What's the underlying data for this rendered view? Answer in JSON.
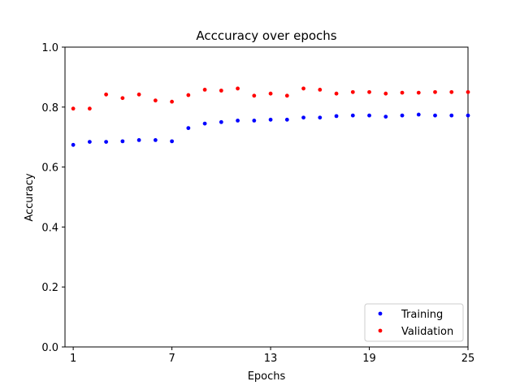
{
  "chart_data": {
    "type": "scatter",
    "title": "Acccuracy over epochs",
    "xlabel": "Epochs",
    "ylabel": "Accuracy",
    "xlim": [
      0.5,
      25
    ],
    "ylim": [
      0.0,
      1.0
    ],
    "xticks": [
      1,
      7,
      13,
      19,
      25
    ],
    "yticks": [
      0.0,
      0.2,
      0.4,
      0.6,
      0.8,
      1.0
    ],
    "ytick_labels": [
      "0.0",
      "0.2",
      "0.4",
      "0.6",
      "0.8",
      "1.0"
    ],
    "legend_position": "lower-right",
    "x": [
      1,
      2,
      3,
      4,
      5,
      6,
      7,
      8,
      9,
      10,
      11,
      12,
      13,
      14,
      15,
      16,
      17,
      18,
      19,
      20,
      21,
      22,
      23,
      24,
      25
    ],
    "series": [
      {
        "name": "Training",
        "color": "#0000ff",
        "values": [
          0.674,
          0.684,
          0.684,
          0.686,
          0.69,
          0.69,
          0.686,
          0.73,
          0.745,
          0.75,
          0.755,
          0.755,
          0.758,
          0.758,
          0.765,
          0.765,
          0.77,
          0.772,
          0.772,
          0.768,
          0.772,
          0.775,
          0.772,
          0.772,
          0.772
        ]
      },
      {
        "name": "Validation",
        "color": "#ff0000",
        "values": [
          0.795,
          0.795,
          0.842,
          0.83,
          0.842,
          0.822,
          0.818,
          0.84,
          0.858,
          0.855,
          0.862,
          0.838,
          0.845,
          0.838,
          0.862,
          0.858,
          0.845,
          0.85,
          0.85,
          0.845,
          0.848,
          0.848,
          0.85,
          0.85,
          0.85
        ]
      }
    ]
  }
}
